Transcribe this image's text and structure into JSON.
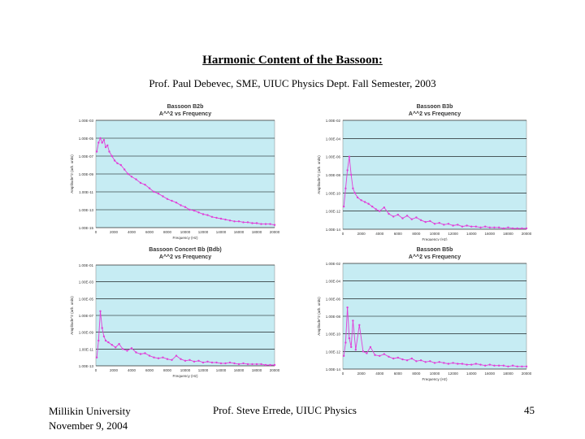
{
  "slide": {
    "title": "Harmonic Content of the Bassoon:",
    "subtitle": "Prof. Paul Debevec, SME, UIUC Physics Dept. Fall Semester, 2003",
    "footer_left_1": "Millikin University",
    "footer_left_2": "November 9, 2004",
    "footer_center": "Prof. Steve Errede, UIUC Physics",
    "page_number": "45"
  },
  "colors": {
    "plot_bg": "#c6ecf3",
    "series": "#e040d8",
    "grid": "#000000"
  },
  "chart_data": [
    {
      "type": "line",
      "title": "Bassoon B2b",
      "subtitle": "A^^2 vs Frequency",
      "xlabel": "Frequency (Hz)",
      "ylabel": "Amplitude^2 (arb. units)",
      "xlim": [
        0,
        20000
      ],
      "xticks": [
        "0",
        "2000",
        "4000",
        "6000",
        "8000",
        "10000",
        "12000",
        "14000",
        "16000",
        "18000",
        "20000"
      ],
      "yticks": [
        "1.00E-15",
        "1.00E-13",
        "1.00E-11",
        "1.00E-09",
        "1.00E-07",
        "1.00E-05",
        "1.00E-03"
      ],
      "yexp": [
        -15,
        -3
      ],
      "series": [
        {
          "name": "Bassoon B2b",
          "x": [
            100,
            300,
            500,
            700,
            900,
            1100,
            1300,
            1500,
            1800,
            2100,
            2400,
            2800,
            3200,
            3600,
            4000,
            4500,
            5000,
            5500,
            6000,
            6500,
            7000,
            7500,
            8000,
            8500,
            9000,
            9500,
            10000,
            10500,
            11000,
            11500,
            12000,
            12500,
            13000,
            13500,
            14000,
            14500,
            15000,
            15500,
            16000,
            16500,
            17000,
            17500,
            18000,
            18500,
            19000,
            19500,
            20000
          ],
          "y": [
            -6.5,
            -5.5,
            -5.0,
            -5.5,
            -5.2,
            -6.0,
            -5.8,
            -6.5,
            -7.0,
            -7.5,
            -7.8,
            -8.0,
            -8.5,
            -9.0,
            -9.3,
            -9.6,
            -10.0,
            -10.2,
            -10.6,
            -11.0,
            -11.2,
            -11.5,
            -11.8,
            -12.0,
            -12.2,
            -12.5,
            -12.7,
            -13.0,
            -13.1,
            -13.3,
            -13.5,
            -13.6,
            -13.8,
            -13.9,
            -14.0,
            -14.1,
            -14.2,
            -14.3,
            -14.3,
            -14.4,
            -14.4,
            -14.5,
            -14.5,
            -14.6,
            -14.6,
            -14.6,
            -14.7
          ]
        }
      ]
    },
    {
      "type": "line",
      "title": "Bassoon B3b",
      "subtitle": "A^^2 vs Frequency",
      "xlabel": "Frequency (Hz)",
      "ylabel": "Amplitude^2 (arb. units)",
      "xlim": [
        0,
        20000
      ],
      "xticks": [
        "0",
        "2000",
        "4000",
        "6000",
        "8000",
        "10000",
        "12000",
        "14000",
        "16000",
        "18000",
        "20000"
      ],
      "yticks": [
        "1.00E-14",
        "1.00E-12",
        "1.00E-10",
        "1.00E-08",
        "1.00E-06",
        "1.00E-04",
        "1.00E-02"
      ],
      "yexp": [
        -14,
        -2
      ],
      "series": [
        {
          "name": "Bassoon B3b",
          "x": [
            100,
            300,
            500,
            700,
            900,
            1100,
            1300,
            1600,
            2000,
            2400,
            2800,
            3200,
            3600,
            4000,
            4500,
            5000,
            5500,
            6000,
            6500,
            7000,
            7500,
            8000,
            8500,
            9000,
            9500,
            10000,
            10500,
            11000,
            11500,
            12000,
            12500,
            13000,
            13500,
            14000,
            14500,
            15000,
            15500,
            16000,
            16500,
            17000,
            17500,
            18000,
            18500,
            19000,
            19500,
            20000
          ],
          "y": [
            -11.5,
            -9.5,
            -7.5,
            -6.0,
            -8.0,
            -9.5,
            -10.0,
            -10.5,
            -10.8,
            -11.0,
            -11.2,
            -11.5,
            -11.8,
            -12.0,
            -11.6,
            -12.3,
            -12.6,
            -12.4,
            -12.8,
            -12.5,
            -12.9,
            -12.7,
            -13.0,
            -13.2,
            -13.1,
            -13.4,
            -13.3,
            -13.5,
            -13.4,
            -13.6,
            -13.5,
            -13.7,
            -13.6,
            -13.7,
            -13.7,
            -13.8,
            -13.7,
            -13.8,
            -13.8,
            -13.8,
            -13.9,
            -13.8,
            -13.9,
            -13.9,
            -13.9,
            -13.9
          ]
        }
      ]
    },
    {
      "type": "line",
      "title": "Bassoon Concert Bb (Bdb)",
      "subtitle": "A^^2 vs Frequency",
      "xlabel": "Frequency (Hz)",
      "ylabel": "Amplitude^2 (arb. units)",
      "xlim": [
        0,
        20000
      ],
      "xticks": [
        "0",
        "2000",
        "4000",
        "6000",
        "8000",
        "10000",
        "12000",
        "14000",
        "16000",
        "18000",
        "20000"
      ],
      "yticks": [
        "1.00E-13",
        "1.00E-11",
        "1.00E-09",
        "1.00E-07",
        "1.00E-05",
        "1.00E-03",
        "1.00E-01"
      ],
      "yexp": [
        -13,
        -1
      ],
      "series": [
        {
          "name": "Bassoon Concert Bb",
          "x": [
            100,
            300,
            500,
            700,
            900,
            1100,
            1400,
            1800,
            2200,
            2600,
            3000,
            3500,
            4000,
            4500,
            5000,
            5500,
            6000,
            6500,
            7000,
            7500,
            8000,
            8500,
            9000,
            9500,
            10000,
            10500,
            11000,
            11500,
            12000,
            12500,
            13000,
            13500,
            14000,
            14500,
            15000,
            15500,
            16000,
            16500,
            17000,
            17500,
            18000,
            18500,
            19000,
            19500,
            20000
          ],
          "y": [
            -12.0,
            -10.0,
            -6.5,
            -8.5,
            -9.5,
            -10.0,
            -10.2,
            -10.5,
            -10.8,
            -10.4,
            -11.0,
            -11.2,
            -10.9,
            -11.4,
            -11.6,
            -11.5,
            -11.8,
            -12.0,
            -12.1,
            -12.0,
            -12.2,
            -12.3,
            -11.8,
            -12.2,
            -12.4,
            -12.3,
            -12.5,
            -12.4,
            -12.6,
            -12.5,
            -12.6,
            -12.6,
            -12.7,
            -12.7,
            -12.6,
            -12.7,
            -12.8,
            -12.7,
            -12.8,
            -12.8,
            -12.8,
            -12.8,
            -12.9,
            -12.9,
            -12.9
          ]
        }
      ]
    },
    {
      "type": "line",
      "title": "Bassoon B5b",
      "subtitle": "A^^2 vs Frequency",
      "xlabel": "Frequency (Hz)",
      "ylabel": "Amplitude^2 (arb. units)",
      "xlim": [
        0,
        20000
      ],
      "xticks": [
        "0",
        "2000",
        "4000",
        "6000",
        "8000",
        "10000",
        "12000",
        "14000",
        "16000",
        "18000",
        "20000"
      ],
      "yticks": [
        "1.00E-14",
        "1.00E-12",
        "1.00E-10",
        "1.00E-08",
        "1.00E-06",
        "1.00E-04",
        "1.00E-02"
      ],
      "yexp": [
        -14,
        -2
      ],
      "series": [
        {
          "name": "Bassoon B5b",
          "x": [
            100,
            300,
            500,
            700,
            900,
            1100,
            1400,
            1800,
            2200,
            2600,
            3000,
            3500,
            4000,
            4500,
            5000,
            5500,
            6000,
            6500,
            7000,
            7500,
            8000,
            8500,
            9000,
            9500,
            10000,
            10500,
            11000,
            11500,
            12000,
            12500,
            13000,
            13500,
            14000,
            14500,
            15000,
            15500,
            16000,
            16500,
            17000,
            17500,
            18000,
            18500,
            19000,
            19500,
            20000
          ],
          "y": [
            -12.5,
            -11.0,
            -7.0,
            -10.5,
            -11.5,
            -8.5,
            -11.8,
            -9.0,
            -12.0,
            -12.2,
            -11.5,
            -12.4,
            -12.5,
            -12.3,
            -12.6,
            -12.8,
            -12.7,
            -12.9,
            -13.0,
            -12.8,
            -13.1,
            -13.0,
            -13.2,
            -13.1,
            -13.3,
            -13.2,
            -13.3,
            -13.4,
            -13.3,
            -13.4,
            -13.4,
            -13.5,
            -13.5,
            -13.4,
            -13.5,
            -13.6,
            -13.5,
            -13.6,
            -13.6,
            -13.6,
            -13.7,
            -13.6,
            -13.7,
            -13.7,
            -13.7
          ]
        }
      ]
    }
  ]
}
